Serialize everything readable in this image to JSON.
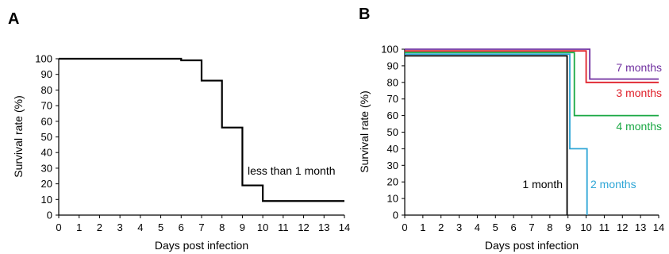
{
  "chart_data": [
    {
      "panel": "A",
      "type": "line",
      "xlabel": "Days post infection",
      "ylabel": "Survival rate (%)",
      "xlim": [
        0,
        14
      ],
      "ylim": [
        0,
        100
      ],
      "xticks": [
        0,
        1,
        2,
        3,
        4,
        5,
        6,
        7,
        8,
        9,
        10,
        11,
        12,
        13,
        14
      ],
      "yticks": [
        0,
        10,
        20,
        30,
        40,
        50,
        60,
        70,
        80,
        90,
        100
      ],
      "grid": false,
      "series": [
        {
          "name": "less than 1 month",
          "color": "#000000",
          "step": true,
          "x": [
            0,
            6,
            7,
            8,
            9,
            10,
            14
          ],
          "y": [
            100,
            99,
            86,
            56,
            19,
            9,
            9
          ]
        }
      ]
    },
    {
      "panel": "B",
      "type": "line",
      "xlabel": "Days post infection",
      "ylabel": "Survival rate (%)",
      "xlim": [
        0,
        14
      ],
      "ylim": [
        0,
        100
      ],
      "xticks": [
        0,
        1,
        2,
        3,
        4,
        5,
        6,
        7,
        8,
        9,
        10,
        11,
        12,
        13,
        14
      ],
      "yticks": [
        0,
        10,
        20,
        30,
        40,
        50,
        60,
        70,
        80,
        90,
        100
      ],
      "grid": false,
      "series": [
        {
          "name": "7 months",
          "color": "#7030a0",
          "step": true,
          "x": [
            0,
            10.2,
            14
          ],
          "y": [
            100,
            82,
            82
          ]
        },
        {
          "name": "3 months",
          "color": "#e0202a",
          "step": true,
          "x": [
            0,
            10,
            14
          ],
          "y": [
            99,
            80,
            80
          ]
        },
        {
          "name": "4 months",
          "color": "#1aa844",
          "step": true,
          "x": [
            0,
            9.35,
            14
          ],
          "y": [
            98,
            60,
            60
          ]
        },
        {
          "name": "2 months",
          "color": "#2ea6d6",
          "step": true,
          "x": [
            0,
            9.1,
            10.05
          ],
          "y": [
            97,
            40,
            0
          ]
        },
        {
          "name": "1 month",
          "color": "#000000",
          "step": true,
          "x": [
            0,
            8.95
          ],
          "y": [
            96,
            0
          ]
        }
      ]
    }
  ]
}
